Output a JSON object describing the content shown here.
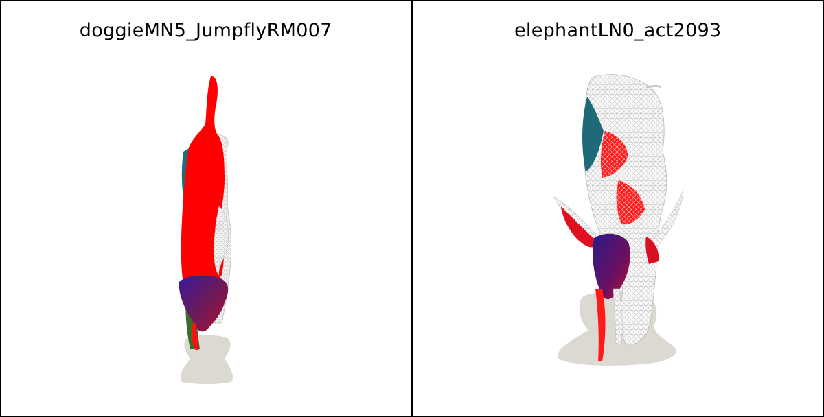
{
  "panels": [
    {
      "title": "doggieMN5_JumpflyRM007"
    },
    {
      "title": "elephantLN0_act2093"
    }
  ],
  "colors": {
    "background": "#ffffff",
    "border": "#000000",
    "shadow": "#dcd9d2",
    "mesh_red": "#ff0000",
    "mesh_wire": "#e6e6e6",
    "mesh_blue": "#3a1a8a",
    "mesh_teal": "#1f6f78",
    "mesh_green": "#2f7a2a"
  }
}
